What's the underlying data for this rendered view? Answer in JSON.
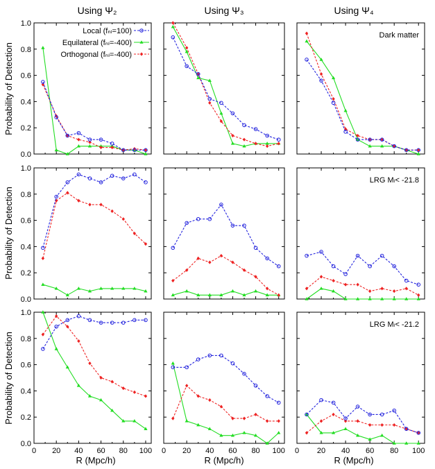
{
  "column_titles": [
    "Using Ψ₂",
    "Using Ψ₃",
    "Using Ψ₄"
  ],
  "ylabel": "Probability of Detection",
  "xlabel": "R (Mpc/h)",
  "row_labels": [
    "Dark matter",
    "LRG Mₗ< -21.8",
    "LRG Mₗ< -21.2"
  ],
  "legend": {
    "local": "Local (fₙₗ=100)",
    "equilateral": "Equilateral (fₙₗ=-400)",
    "orthogonal": "Orthogonal (fₙₗ=-400)"
  },
  "colors": {
    "local": "#2222dd",
    "equilateral": "#22dd22",
    "orthogonal": "#ee2222"
  },
  "chart_data": [
    {
      "type": "line",
      "row": 0,
      "col": 0,
      "title": "Using Ψ₂",
      "xlabel": "",
      "ylabel": "Probability of Detection",
      "xlim": [
        0,
        105
      ],
      "ylim": [
        0,
        1.0
      ],
      "x": [
        8,
        20,
        30,
        40,
        50,
        60,
        70,
        80,
        90,
        100
      ],
      "series": [
        {
          "name": "Local (fNL=100)",
          "key": "local",
          "values": [
            0.55,
            0.28,
            0.14,
            0.16,
            0.11,
            0.11,
            0.08,
            0.03,
            0.03,
            0.03
          ]
        },
        {
          "name": "Equilateral (fNL=-400)",
          "key": "equilateral",
          "values": [
            0.81,
            0.03,
            0.0,
            0.06,
            0.06,
            0.06,
            0.06,
            0.03,
            0.03,
            0.0
          ]
        },
        {
          "name": "Orthogonal (fNL=-400)",
          "key": "orthogonal",
          "values": [
            0.53,
            0.29,
            0.14,
            0.11,
            0.09,
            0.05,
            0.05,
            0.03,
            0.04,
            0.03
          ]
        }
      ]
    },
    {
      "type": "line",
      "row": 0,
      "col": 1,
      "title": "Using Ψ₃",
      "xlim": [
        0,
        105
      ],
      "ylim": [
        0,
        1.0
      ],
      "x": [
        8,
        20,
        30,
        40,
        50,
        60,
        70,
        80,
        90,
        100
      ],
      "series": [
        {
          "name": "Local (fNL=100)",
          "key": "local",
          "values": [
            0.89,
            0.67,
            0.61,
            0.42,
            0.39,
            0.31,
            0.22,
            0.19,
            0.14,
            0.11
          ]
        },
        {
          "name": "Equilateral (fNL=-400)",
          "key": "equilateral",
          "values": [
            0.97,
            0.78,
            0.58,
            0.56,
            0.31,
            0.08,
            0.06,
            0.08,
            0.08,
            0.08
          ]
        },
        {
          "name": "Orthogonal (fNL=-400)",
          "key": "orthogonal",
          "values": [
            1.0,
            0.81,
            0.61,
            0.39,
            0.25,
            0.14,
            0.11,
            0.08,
            0.06,
            0.08
          ]
        }
      ]
    },
    {
      "type": "line",
      "row": 0,
      "col": 2,
      "title": "Using Ψ₄",
      "annotation": "Dark matter",
      "xlim": [
        0,
        105
      ],
      "ylim": [
        0,
        1.0
      ],
      "x": [
        8,
        20,
        30,
        40,
        50,
        60,
        70,
        80,
        90,
        100
      ],
      "series": [
        {
          "name": "Local (fNL=100)",
          "key": "local",
          "values": [
            0.72,
            0.56,
            0.39,
            0.17,
            0.11,
            0.11,
            0.11,
            0.06,
            0.03,
            0.03
          ]
        },
        {
          "name": "Equilateral (fNL=-400)",
          "key": "equilateral",
          "values": [
            0.86,
            0.72,
            0.58,
            0.33,
            0.11,
            0.06,
            0.06,
            0.06,
            0.03,
            0.0
          ]
        },
        {
          "name": "Orthogonal (fNL=-400)",
          "key": "orthogonal",
          "values": [
            0.92,
            0.61,
            0.42,
            0.19,
            0.14,
            0.11,
            0.11,
            0.06,
            0.03,
            0.03
          ]
        }
      ]
    },
    {
      "type": "line",
      "row": 1,
      "col": 0,
      "ylabel": "Probability of Detection",
      "xlim": [
        0,
        105
      ],
      "ylim": [
        0,
        1.0
      ],
      "x": [
        8,
        20,
        30,
        40,
        50,
        60,
        70,
        80,
        90,
        100
      ],
      "series": [
        {
          "name": "Local (fNL=100)",
          "key": "local",
          "values": [
            0.39,
            0.78,
            0.89,
            0.95,
            0.92,
            0.89,
            0.94,
            0.92,
            0.95,
            0.89
          ]
        },
        {
          "name": "Equilateral (fNL=-400)",
          "key": "equilateral",
          "values": [
            0.11,
            0.08,
            0.03,
            0.08,
            0.06,
            0.08,
            0.08,
            0.08,
            0.08,
            0.06
          ]
        },
        {
          "name": "Orthogonal (fNL=-400)",
          "key": "orthogonal",
          "values": [
            0.31,
            0.75,
            0.81,
            0.75,
            0.72,
            0.72,
            0.67,
            0.61,
            0.5,
            0.42
          ]
        }
      ]
    },
    {
      "type": "line",
      "row": 1,
      "col": 1,
      "xlim": [
        0,
        105
      ],
      "ylim": [
        0,
        1.0
      ],
      "x": [
        8,
        20,
        30,
        40,
        50,
        60,
        70,
        80,
        90,
        100
      ],
      "series": [
        {
          "name": "Local (fNL=100)",
          "key": "local",
          "values": [
            0.39,
            0.58,
            0.61,
            0.61,
            0.72,
            0.56,
            0.56,
            0.39,
            0.31,
            0.25
          ]
        },
        {
          "name": "Equilateral (fNL=-400)",
          "key": "equilateral",
          "values": [
            0.03,
            0.06,
            0.03,
            0.03,
            0.03,
            0.06,
            0.03,
            0.06,
            0.03,
            0.03
          ]
        },
        {
          "name": "Orthogonal (fNL=-400)",
          "key": "orthogonal",
          "values": [
            0.14,
            0.22,
            0.31,
            0.28,
            0.33,
            0.28,
            0.22,
            0.17,
            0.08,
            0.03
          ]
        }
      ]
    },
    {
      "type": "line",
      "row": 1,
      "col": 2,
      "annotation": "LRG Mg< -21.8",
      "xlim": [
        0,
        105
      ],
      "ylim": [
        0,
        1.0
      ],
      "x": [
        8,
        20,
        30,
        40,
        50,
        60,
        70,
        80,
        90,
        100
      ],
      "series": [
        {
          "name": "Local (fNL=100)",
          "key": "local",
          "values": [
            0.33,
            0.36,
            0.25,
            0.19,
            0.33,
            0.25,
            0.33,
            0.25,
            0.14,
            0.11
          ]
        },
        {
          "name": "Equilateral (fNL=-400)",
          "key": "equilateral",
          "values": [
            0.0,
            0.08,
            0.06,
            0.0,
            0.0,
            0.0,
            0.0,
            0.0,
            0.0,
            0.0
          ]
        },
        {
          "name": "Orthogonal (fNL=-400)",
          "key": "orthogonal",
          "values": [
            0.08,
            0.17,
            0.14,
            0.11,
            0.11,
            0.06,
            0.08,
            0.06,
            0.08,
            0.03
          ]
        }
      ]
    },
    {
      "type": "line",
      "row": 2,
      "col": 0,
      "ylabel": "Probability of Detection",
      "xlim": [
        0,
        105
      ],
      "ylim": [
        0,
        1.0
      ],
      "x": [
        8,
        20,
        30,
        40,
        50,
        60,
        70,
        80,
        90,
        100
      ],
      "series": [
        {
          "name": "Local (fNL=100)",
          "key": "local",
          "values": [
            0.72,
            0.89,
            0.94,
            0.97,
            0.94,
            0.92,
            0.92,
            0.92,
            0.94,
            0.94
          ]
        },
        {
          "name": "Equilateral (fNL=-400)",
          "key": "equilateral",
          "values": [
            1.0,
            0.72,
            0.58,
            0.44,
            0.36,
            0.33,
            0.25,
            0.17,
            0.17,
            0.11
          ]
        },
        {
          "name": "Orthogonal (fNL=-400)",
          "key": "orthogonal",
          "values": [
            0.83,
            0.97,
            0.89,
            0.78,
            0.61,
            0.5,
            0.47,
            0.42,
            0.39,
            0.36
          ]
        }
      ]
    },
    {
      "type": "line",
      "row": 2,
      "col": 1,
      "xlim": [
        0,
        105
      ],
      "ylim": [
        0,
        1.0
      ],
      "x": [
        8,
        20,
        30,
        40,
        50,
        60,
        70,
        80,
        90,
        100
      ],
      "series": [
        {
          "name": "Local (fNL=100)",
          "key": "local",
          "values": [
            0.58,
            0.58,
            0.64,
            0.67,
            0.67,
            0.61,
            0.53,
            0.44,
            0.36,
            0.31
          ]
        },
        {
          "name": "Equilateral (fNL=-400)",
          "key": "equilateral",
          "values": [
            0.61,
            0.17,
            0.14,
            0.11,
            0.06,
            0.06,
            0.08,
            0.06,
            0.0,
            0.08
          ]
        },
        {
          "name": "Orthogonal (fNL=-400)",
          "key": "orthogonal",
          "values": [
            0.19,
            0.44,
            0.36,
            0.33,
            0.28,
            0.19,
            0.19,
            0.22,
            0.17,
            0.17
          ]
        }
      ]
    },
    {
      "type": "line",
      "row": 2,
      "col": 2,
      "annotation": "LRG Mg< -21.2",
      "xlabel": "R (Mpc/h)",
      "xlim": [
        0,
        105
      ],
      "ylim": [
        0,
        1.0
      ],
      "x": [
        8,
        20,
        30,
        40,
        50,
        60,
        70,
        80,
        90,
        100
      ],
      "series": [
        {
          "name": "Local (fNL=100)",
          "key": "local",
          "values": [
            0.22,
            0.33,
            0.31,
            0.19,
            0.28,
            0.22,
            0.22,
            0.25,
            0.11,
            0.08
          ]
        },
        {
          "name": "Equilateral (fNL=-400)",
          "key": "equilateral",
          "values": [
            0.22,
            0.08,
            0.08,
            0.11,
            0.06,
            0.03,
            0.06,
            0.0,
            0.0,
            0.0
          ]
        },
        {
          "name": "Orthogonal (fNL=-400)",
          "key": "orthogonal",
          "values": [
            0.08,
            0.17,
            0.22,
            0.17,
            0.17,
            0.14,
            0.14,
            0.14,
            0.11,
            0.08
          ]
        }
      ]
    }
  ],
  "ticks": {
    "y": [
      "0.0",
      "0.2",
      "0.4",
      "0.6",
      "0.8",
      "1.0"
    ],
    "x": [
      "0",
      "20",
      "40",
      "60",
      "80",
      "100"
    ]
  }
}
